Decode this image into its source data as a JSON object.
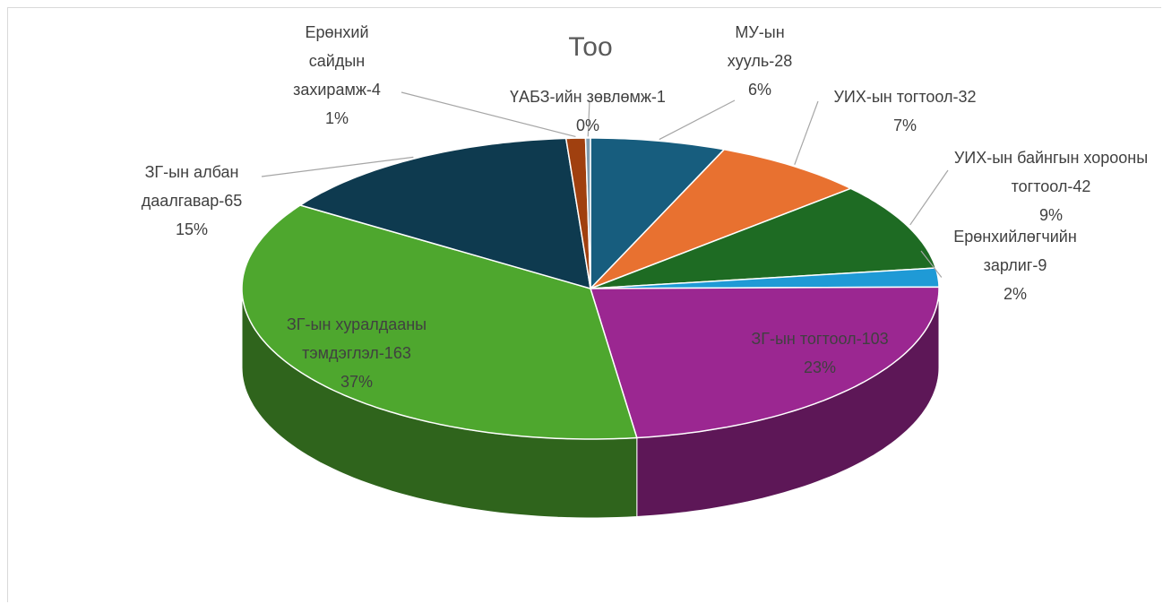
{
  "chart_data": {
    "type": "pie",
    "title": "Тоо",
    "categories": [
      "МУ-ын хууль-28",
      "УИХ-ын тогтоол-32",
      "УИХ-ын байнгын хорооны тогтоол-42",
      "Ерөнхийлөгчийн зарлиг-9",
      "ЗГ-ын тогтоол-103",
      "ЗГ-ын хуралдааны тэмдэглэл-163",
      "ЗГ-ын албан даалгавар-65",
      "Ерөнхий сайдын захирамж-4",
      "ҮАБЗ-ийн зөвлөмж-1"
    ],
    "values": [
      28,
      32,
      42,
      9,
      103,
      163,
      65,
      4,
      1
    ],
    "percent_labels": [
      "6%",
      "7%",
      "9%",
      "2%",
      "23%",
      "37%",
      "15%",
      "1%",
      "0%"
    ],
    "colors": [
      "#175d7e",
      "#e87130",
      "#1e6b23",
      "#1f9ad6",
      "#9b2791",
      "#4ea72e",
      "#0e3a4f",
      "#a0400f",
      "#7f9db0"
    ]
  }
}
